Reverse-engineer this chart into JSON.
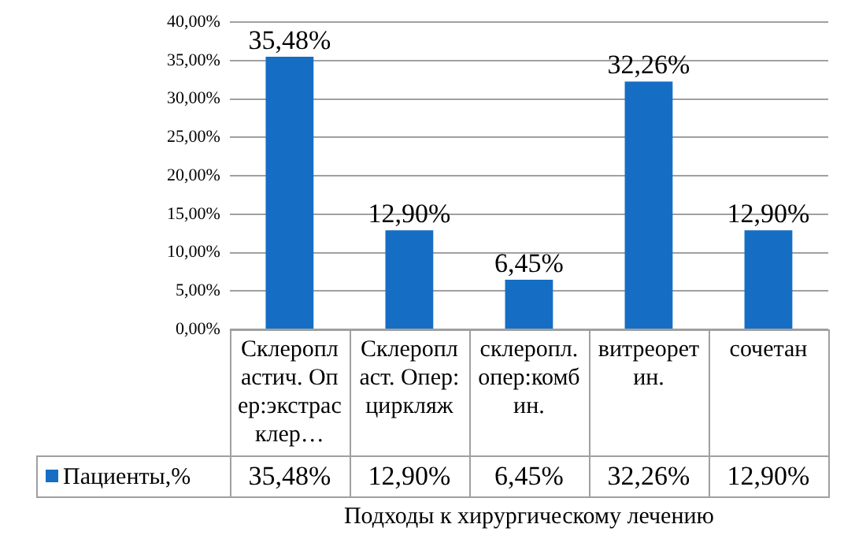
{
  "chart_data": {
    "type": "bar",
    "xlabel": "Подходы к хирургическому лечению",
    "categories": [
      "Склеропластич. Опер:экстрасклер…",
      "Склеропласт. Опер:циркляж",
      "склеропл.опер:комбин.",
      "витреоретин.",
      "сочетан"
    ],
    "series": [
      {
        "name": "Пациенты,%",
        "color": "#156ec4",
        "values": [
          35.48,
          12.9,
          6.45,
          32.26,
          12.9
        ],
        "value_labels": [
          "35,48%",
          "12,90%",
          "6,45%",
          "32,26%",
          "12,90%"
        ]
      }
    ],
    "ylim": [
      0,
      40
    ],
    "yticks": [
      {
        "value": 0,
        "label": "0,00%"
      },
      {
        "value": 5,
        "label": "5,00%"
      },
      {
        "value": 10,
        "label": "10,00%"
      },
      {
        "value": 15,
        "label": "15,00%"
      },
      {
        "value": 20,
        "label": "20,00%"
      },
      {
        "value": 25,
        "label": "25,00%"
      },
      {
        "value": 30,
        "label": "30,00%"
      },
      {
        "value": 35,
        "label": "35,00%"
      },
      {
        "value": 40,
        "label": "40,00%"
      }
    ],
    "grid": "y",
    "legend": "bottom"
  }
}
